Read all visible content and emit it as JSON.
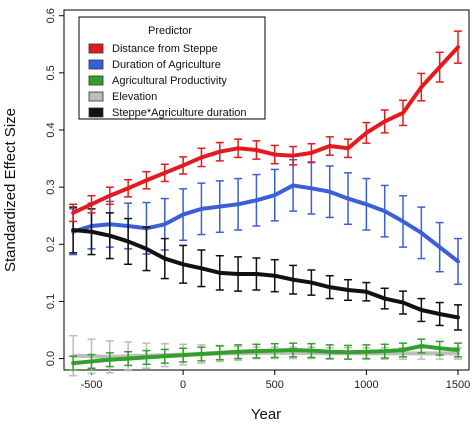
{
  "chart_data": {
    "type": "line",
    "title": "",
    "xlabel": "Year",
    "ylabel": "Standardized Effect Size",
    "xlim": [
      -650,
      1560
    ],
    "ylim": [
      -0.02,
      0.61
    ],
    "xticks": [
      -500,
      0,
      500,
      1000,
      1500
    ],
    "yticks": [
      0.0,
      0.1,
      0.2,
      0.3,
      0.4,
      0.5,
      0.6
    ],
    "grid": false,
    "error_bars": true,
    "legend": {
      "title": "Predictor",
      "placement": "top-left"
    },
    "x": [
      -600,
      -500,
      -400,
      -300,
      -200,
      -100,
      0,
      100,
      200,
      300,
      400,
      500,
      600,
      700,
      800,
      900,
      1000,
      1100,
      1200,
      1300,
      1400,
      1500
    ],
    "series": [
      {
        "name": "Distance from Steppe",
        "color": "#e41a1c",
        "values": [
          0.255,
          0.27,
          0.285,
          0.298,
          0.312,
          0.325,
          0.338,
          0.352,
          0.362,
          0.368,
          0.365,
          0.357,
          0.355,
          0.36,
          0.372,
          0.368,
          0.395,
          0.415,
          0.43,
          0.475,
          0.51,
          0.545
        ],
        "errors": [
          0.015,
          0.015,
          0.015,
          0.015,
          0.015,
          0.015,
          0.015,
          0.016,
          0.016,
          0.016,
          0.016,
          0.016,
          0.016,
          0.016,
          0.016,
          0.016,
          0.018,
          0.02,
          0.022,
          0.024,
          0.026,
          0.028
        ]
      },
      {
        "name": "Duration of Agriculture",
        "color": "#3a5fd9",
        "values": [
          0.222,
          0.232,
          0.235,
          0.232,
          0.228,
          0.235,
          0.252,
          0.262,
          0.266,
          0.27,
          0.277,
          0.286,
          0.303,
          0.298,
          0.292,
          0.28,
          0.27,
          0.258,
          0.24,
          0.22,
          0.195,
          0.17
        ],
        "errors": [
          0.04,
          0.04,
          0.04,
          0.04,
          0.045,
          0.045,
          0.045,
          0.045,
          0.045,
          0.045,
          0.045,
          0.045,
          0.045,
          0.045,
          0.045,
          0.045,
          0.045,
          0.045,
          0.045,
          0.045,
          0.043,
          0.04
        ]
      },
      {
        "name": "Agricultural Productivity",
        "color": "#33a02c",
        "values": [
          -0.008,
          -0.005,
          -0.002,
          0.0,
          0.002,
          0.004,
          0.006,
          0.008,
          0.01,
          0.012,
          0.013,
          0.014,
          0.015,
          0.014,
          0.012,
          0.011,
          0.012,
          0.013,
          0.015,
          0.022,
          0.018,
          0.015
        ],
        "errors": [
          0.012,
          0.012,
          0.012,
          0.012,
          0.012,
          0.012,
          0.012,
          0.012,
          0.012,
          0.012,
          0.012,
          0.012,
          0.012,
          0.012,
          0.012,
          0.012,
          0.012,
          0.012,
          0.012,
          0.012,
          0.012,
          0.012
        ]
      },
      {
        "name": "Elevation",
        "color": "#bdbdbd",
        "values": [
          0.005,
          0.004,
          0.003,
          0.004,
          0.005,
          0.006,
          0.007,
          0.008,
          0.009,
          0.009,
          0.01,
          0.01,
          0.01,
          0.01,
          0.009,
          0.009,
          0.009,
          0.009,
          0.009,
          0.009,
          0.009,
          0.009
        ],
        "errors": [
          0.035,
          0.03,
          0.028,
          0.025,
          0.022,
          0.02,
          0.018,
          0.016,
          0.014,
          0.012,
          0.01,
          0.01,
          0.01,
          0.01,
          0.01,
          0.01,
          0.01,
          0.01,
          0.01,
          0.01,
          0.01,
          0.01
        ]
      },
      {
        "name": "Steppe*Agriculture duration",
        "color": "#111111",
        "values": [
          0.225,
          0.222,
          0.215,
          0.205,
          0.192,
          0.175,
          0.165,
          0.158,
          0.15,
          0.148,
          0.148,
          0.145,
          0.138,
          0.133,
          0.125,
          0.12,
          0.117,
          0.105,
          0.098,
          0.085,
          0.078,
          0.072
        ],
        "errors": [
          0.04,
          0.04,
          0.04,
          0.04,
          0.038,
          0.035,
          0.033,
          0.032,
          0.03,
          0.03,
          0.028,
          0.028,
          0.025,
          0.022,
          0.02,
          0.018,
          0.016,
          0.018,
          0.02,
          0.02,
          0.02,
          0.022
        ]
      }
    ]
  }
}
